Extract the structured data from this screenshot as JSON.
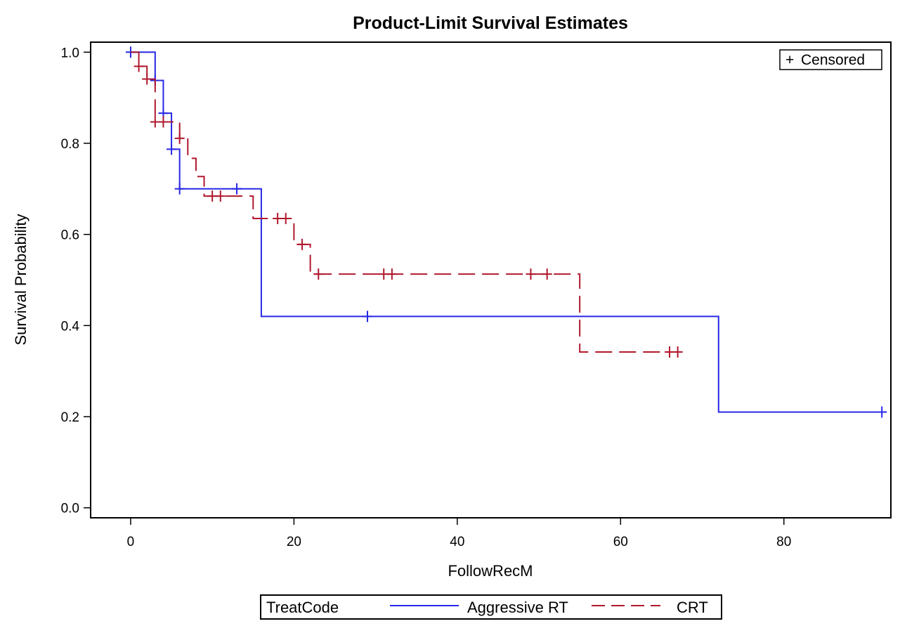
{
  "chart_data": {
    "type": "line",
    "subtype": "kaplan-meier step",
    "title": "Product-Limit Survival Estimates",
    "xlabel": "FollowRecM",
    "ylabel": "Survival Probability",
    "xlim": [
      -4.9,
      93.1
    ],
    "ylim": [
      -0.022,
      1.022
    ],
    "xticks": [
      0,
      20,
      40,
      60,
      80
    ],
    "xtick_labels": [
      "0",
      "20",
      "40",
      "60",
      "80"
    ],
    "yticks": [
      0.0,
      0.2,
      0.4,
      0.6,
      0.8,
      1.0
    ],
    "ytick_labels": [
      "0.0",
      "0.2",
      "0.4",
      "0.6",
      "0.8",
      "1.0"
    ],
    "grid": false,
    "censor_legend": {
      "symbol": "+",
      "label": "Censored",
      "position": "top-right"
    },
    "legend": {
      "title": "TreatCode",
      "position": "bottom"
    },
    "series": [
      {
        "name": "Aggressive RT",
        "color": "#2828e6",
        "dash": "solid",
        "steps": [
          [
            0,
            1.0
          ],
          [
            3,
            0.938
          ],
          [
            4,
            0.866
          ],
          [
            5,
            0.787
          ],
          [
            6,
            0.7
          ],
          [
            16,
            0.42
          ],
          [
            72,
            0.21
          ]
        ],
        "end_time": 92,
        "censored": [
          [
            0,
            1.0
          ],
          [
            3,
            0.938
          ],
          [
            4,
            0.866
          ],
          [
            5,
            0.787
          ],
          [
            6,
            0.7
          ],
          [
            13,
            0.7
          ],
          [
            29,
            0.42
          ],
          [
            92,
            0.21
          ]
        ]
      },
      {
        "name": "CRT",
        "color": "#b0182e",
        "dash": "dashed",
        "steps": [
          [
            0,
            1.0
          ],
          [
            1,
            0.969
          ],
          [
            2,
            0.941
          ],
          [
            3,
            0.847
          ],
          [
            6,
            0.811
          ],
          [
            7,
            0.767
          ],
          [
            8,
            0.727
          ],
          [
            9,
            0.684
          ],
          [
            15,
            0.635
          ],
          [
            20,
            0.578
          ],
          [
            22,
            0.513
          ],
          [
            55,
            0.342
          ]
        ],
        "end_time": 67,
        "censored": [
          [
            1,
            0.969
          ],
          [
            2,
            0.941
          ],
          [
            3,
            0.847
          ],
          [
            4,
            0.847
          ],
          [
            6,
            0.811
          ],
          [
            10,
            0.684
          ],
          [
            11,
            0.684
          ],
          [
            18,
            0.635
          ],
          [
            19,
            0.635
          ],
          [
            21,
            0.578
          ],
          [
            23,
            0.513
          ],
          [
            31,
            0.513
          ],
          [
            32,
            0.513
          ],
          [
            49,
            0.513
          ],
          [
            51,
            0.513
          ],
          [
            66,
            0.342
          ],
          [
            67,
            0.342
          ]
        ]
      }
    ]
  }
}
